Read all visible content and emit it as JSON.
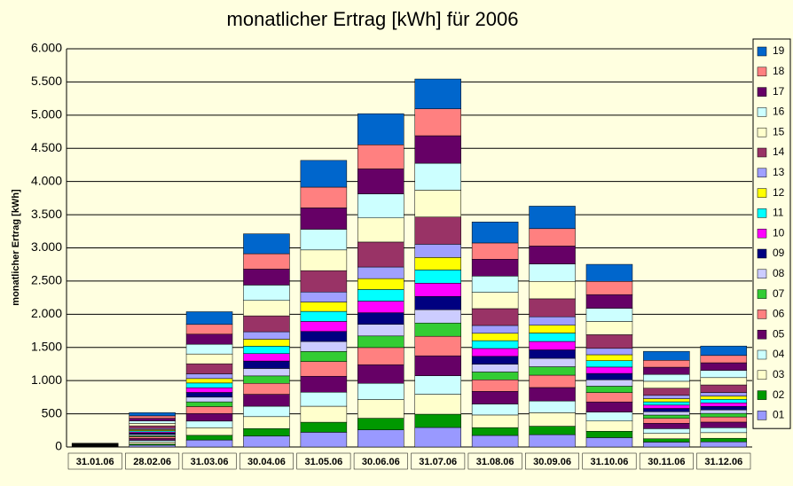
{
  "chart_data": {
    "type": "stacked-bar",
    "title": "monatlicher Ertrag [kWh] für 2006",
    "y_label": "monatlicher Ertrag [kWh]",
    "categories": [
      "31.01.06",
      "28.02.06",
      "31.03.06",
      "30.04.06",
      "31.05.06",
      "30.06.06",
      "31.07.06",
      "31.08.06",
      "30.09.06",
      "31.10.06",
      "30.11.06",
      "31.12.06"
    ],
    "ylim": [
      0,
      6000
    ],
    "yticks": [
      0,
      500,
      {
        "value": 1000,
        "label": "1.000"
      },
      {
        "value": 1500,
        "label": "1.500"
      },
      {
        "value": 2000,
        "label": "2.000"
      },
      {
        "value": 2500,
        "label": "2.500"
      },
      {
        "value": 3000,
        "label": "3.000"
      },
      {
        "value": 3500,
        "label": "3.500"
      },
      {
        "value": 4000,
        "label": "4.000"
      },
      {
        "value": 4500,
        "label": "4.500"
      },
      {
        "value": 5000,
        "label": "5.000"
      },
      {
        "value": 5500,
        "label": "5.500"
      },
      {
        "value": 6000,
        "label": "6.000"
      }
    ],
    "grid": true,
    "legend": "right",
    "series": [
      {
        "name": "01",
        "color": "#9999ff",
        "values": [
          3,
          27,
          105,
          165,
          222,
          258,
          294,
          174,
          186,
          141,
          74,
          78
        ]
      },
      {
        "name": "02",
        "color": "#009900",
        "values": [
          3,
          18,
          71,
          112,
          151,
          175,
          200,
          118,
          127,
          96,
          50,
          53
        ]
      },
      {
        "name": "03",
        "color": "#ffffcc",
        "values": [
          3,
          29,
          114,
          180,
          241,
          281,
          300,
          190,
          203,
          154,
          81,
          85
        ]
      },
      {
        "name": "04",
        "color": "#ccffff",
        "values": [
          3,
          25,
          100,
          157,
          211,
          245,
          280,
          166,
          177,
          134,
          71,
          74
        ]
      },
      {
        "name": "05",
        "color": "#660066",
        "values": [
          3,
          29,
          114,
          180,
          241,
          281,
          300,
          190,
          203,
          154,
          81,
          85
        ]
      },
      {
        "name": "06",
        "color": "#ff8080",
        "values": [
          3,
          27,
          105,
          165,
          222,
          258,
          294,
          174,
          186,
          141,
          74,
          78
        ]
      },
      {
        "name": "07",
        "color": "#33cc33",
        "values": [
          3,
          18,
          71,
          112,
          151,
          175,
          200,
          118,
          127,
          96,
          50,
          53
        ]
      },
      {
        "name": "08",
        "color": "#ccccff",
        "values": [
          3,
          18,
          71,
          112,
          151,
          175,
          200,
          118,
          127,
          96,
          50,
          53
        ]
      },
      {
        "name": "09",
        "color": "#000080",
        "values": [
          3,
          18,
          71,
          112,
          151,
          175,
          200,
          118,
          127,
          96,
          50,
          53
        ]
      },
      {
        "name": "10",
        "color": "#ff00ff",
        "values": [
          3,
          18,
          71,
          112,
          151,
          175,
          200,
          118,
          127,
          96,
          50,
          53
        ]
      },
      {
        "name": "11",
        "color": "#00ffff",
        "values": [
          3,
          18,
          71,
          112,
          151,
          175,
          200,
          118,
          127,
          96,
          50,
          53
        ]
      },
      {
        "name": "12",
        "color": "#ffff00",
        "values": [
          3,
          17,
          67,
          105,
          141,
          164,
          187,
          111,
          118,
          90,
          47,
          50
        ]
      },
      {
        "name": "13",
        "color": "#a0a0ff",
        "values": [
          3,
          18,
          71,
          112,
          151,
          175,
          200,
          118,
          127,
          96,
          50,
          53
        ]
      },
      {
        "name": "14",
        "color": "#993366",
        "values": [
          3,
          39,
          152,
          240,
          322,
          376,
          410,
          254,
          271,
          206,
          108,
          114
        ]
      },
      {
        "name": "15",
        "color": "#ffffcc",
        "values": [
          3,
          37,
          147,
          232,
          312,
          363,
          405,
          245,
          262,
          199,
          104,
          110
        ]
      },
      {
        "name": "16",
        "color": "#ccffff",
        "values": [
          3,
          37,
          147,
          232,
          312,
          363,
          405,
          245,
          262,
          199,
          104,
          110
        ]
      },
      {
        "name": "17",
        "color": "#660066",
        "values": [
          3,
          39,
          152,
          240,
          322,
          376,
          415,
          254,
          271,
          206,
          108,
          114
        ]
      },
      {
        "name": "18",
        "color": "#ff8080",
        "values": [
          3,
          37,
          147,
          232,
          312,
          363,
          405,
          245,
          262,
          199,
          104,
          110
        ]
      },
      {
        "name": "19",
        "color": "#0066cc",
        "values": [
          3,
          48,
          191,
          300,
          403,
          469,
          450,
          317,
          339,
          257,
          135,
          142
        ]
      }
    ]
  }
}
